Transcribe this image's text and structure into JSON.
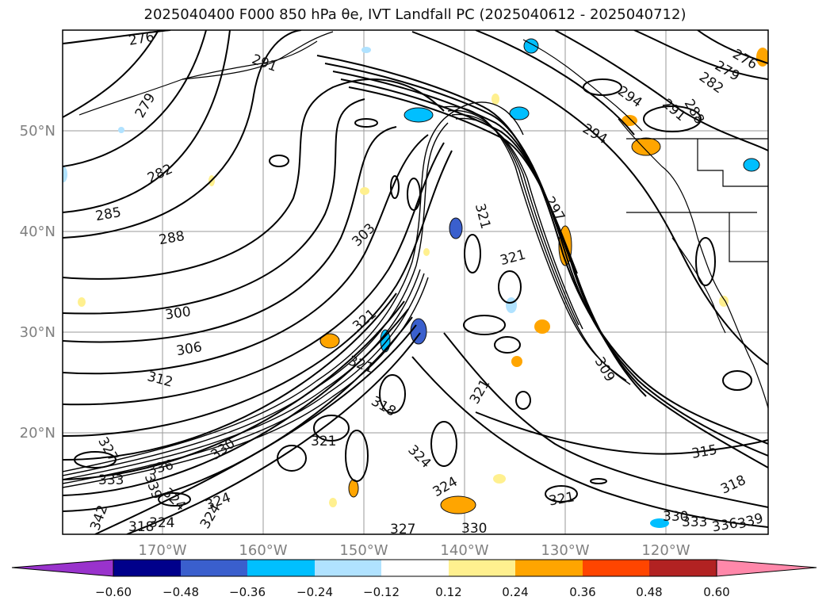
{
  "title_text": "2025040400 F000 850 hPa θe, IVT Landfall PC (2025040612 - 2025040712)",
  "lat_labels": [
    "50°N",
    "40°N",
    "30°N",
    "20°N"
  ],
  "lon_labels": [
    "170°W",
    "160°W",
    "150°W",
    "140°W",
    "130°W",
    "120°W"
  ],
  "colorbar": {
    "ticks": [
      "−0.60",
      "−0.48",
      "−0.36",
      "−0.24",
      "−0.12",
      "0.12",
      "0.24",
      "0.36",
      "0.48",
      "0.60"
    ],
    "colors": [
      "#9933cc",
      "#00008b",
      "#3a5fcd",
      "#00bfff",
      "#b0e2ff",
      "#ffffff",
      "#fff08f",
      "#ffa500",
      "#ff4500",
      "#b22222",
      "#ff88aa",
      "#ff88aa"
    ]
  },
  "contour_labels": [
    "276",
    "279",
    "282",
    "285",
    "288",
    "291",
    "294",
    "297",
    "300",
    "303",
    "306",
    "309",
    "312",
    "315",
    "318",
    "321",
    "324",
    "327",
    "330",
    "333",
    "336",
    "339",
    "342"
  ]
}
